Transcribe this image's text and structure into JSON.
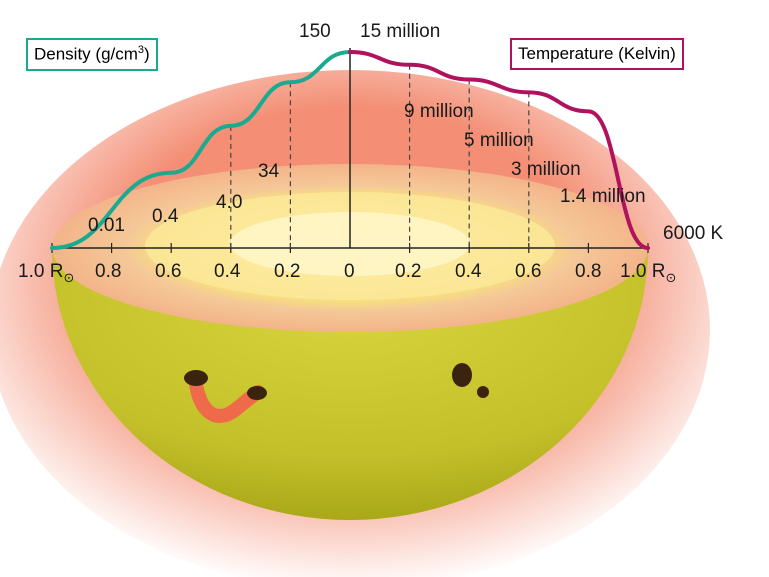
{
  "legend": {
    "density": {
      "text": "Density (g/cm",
      "sup": "3",
      "close": ")",
      "color": "#1aaa8f"
    },
    "temperature": {
      "text": "Temperature (Kelvin)",
      "color": "#b0125e"
    }
  },
  "axis": {
    "left_ticks": [
      "1.0",
      "0.8",
      "0.6",
      "0.4",
      "0.2"
    ],
    "center": "0",
    "right_ticks": [
      "0.2",
      "0.4",
      "0.6",
      "0.8",
      "1.0"
    ],
    "unit_left": "R",
    "unit_right": "R",
    "unit_symbol": "⊙"
  },
  "chart_data": [
    {
      "type": "line",
      "series": [
        {
          "name": "Density (g/cm3)",
          "color": "#1aaa8f",
          "x": [
            0,
            0.2,
            0.4,
            0.6,
            1.0
          ],
          "values": [
            150,
            34,
            4.0,
            0.4,
            0.01
          ]
        }
      ],
      "point_labels": [
        "150",
        "34",
        "4.0",
        "0.4",
        "0.01"
      ],
      "xlabel": "R⊙"
    },
    {
      "type": "line",
      "series": [
        {
          "name": "Temperature (Kelvin)",
          "color": "#b0125e",
          "x": [
            0,
            0.2,
            0.4,
            0.6,
            0.8,
            1.0
          ],
          "values": [
            15000000,
            9000000,
            5000000,
            3000000,
            1400000,
            6000
          ]
        }
      ],
      "point_labels": [
        "15 million",
        "9 million",
        "5 million",
        "3 million",
        "1.4 million",
        "6000 K"
      ],
      "xlabel": "R⊙"
    }
  ],
  "colors": {
    "density": "#1aaa8f",
    "temperature": "#b0125e",
    "sun_body": "#c8c430",
    "corona": "#ef6a4a",
    "rim": "#f3b38c",
    "core": "#fff3b0"
  }
}
